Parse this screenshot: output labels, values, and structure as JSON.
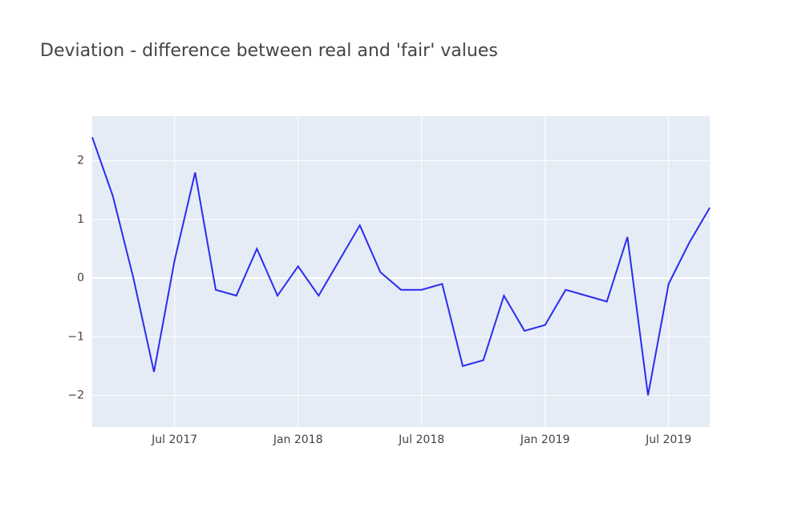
{
  "chart_data": {
    "type": "line",
    "title": "Deviation - difference between real and 'fair' values",
    "x": [
      "2017-03",
      "2017-04",
      "2017-05",
      "2017-06",
      "2017-07",
      "2017-08",
      "2017-09",
      "2017-10",
      "2017-11",
      "2017-12",
      "2018-01",
      "2018-02",
      "2018-03",
      "2018-04",
      "2018-05",
      "2018-06",
      "2018-07",
      "2018-08",
      "2018-09",
      "2018-10",
      "2018-11",
      "2018-12",
      "2019-01",
      "2019-02",
      "2019-03",
      "2019-04",
      "2019-05",
      "2019-06",
      "2019-07",
      "2019-08",
      "2019-09"
    ],
    "series": [
      {
        "color": "#2a2cf0",
        "values": [
          2.4,
          1.4,
          0.0,
          -1.6,
          0.3,
          1.8,
          -0.2,
          -0.3,
          0.5,
          -0.3,
          0.2,
          -0.3,
          0.3,
          0.9,
          0.1,
          -0.2,
          -0.2,
          -0.1,
          -1.5,
          -1.4,
          -0.3,
          -0.9,
          -0.8,
          -0.2,
          -0.3,
          -0.4,
          0.7,
          -2.0,
          -0.1,
          0.6,
          1.2
        ]
      }
    ],
    "xlim": [
      "2017-03",
      "2019-09"
    ],
    "xticks": [
      {
        "value": "2017-07",
        "label": "Jul 2017"
      },
      {
        "value": "2018-01",
        "label": "Jan 2018"
      },
      {
        "value": "2018-07",
        "label": "Jul 2018"
      },
      {
        "value": "2019-01",
        "label": "Jan 2019"
      },
      {
        "value": "2019-07",
        "label": "Jul 2019"
      }
    ],
    "ylim": [
      -2.54,
      2.76
    ],
    "yticks": [
      {
        "value": -2,
        "label": "−2"
      },
      {
        "value": -1,
        "label": "−1"
      },
      0,
      1,
      2
    ],
    "grid": true
  }
}
